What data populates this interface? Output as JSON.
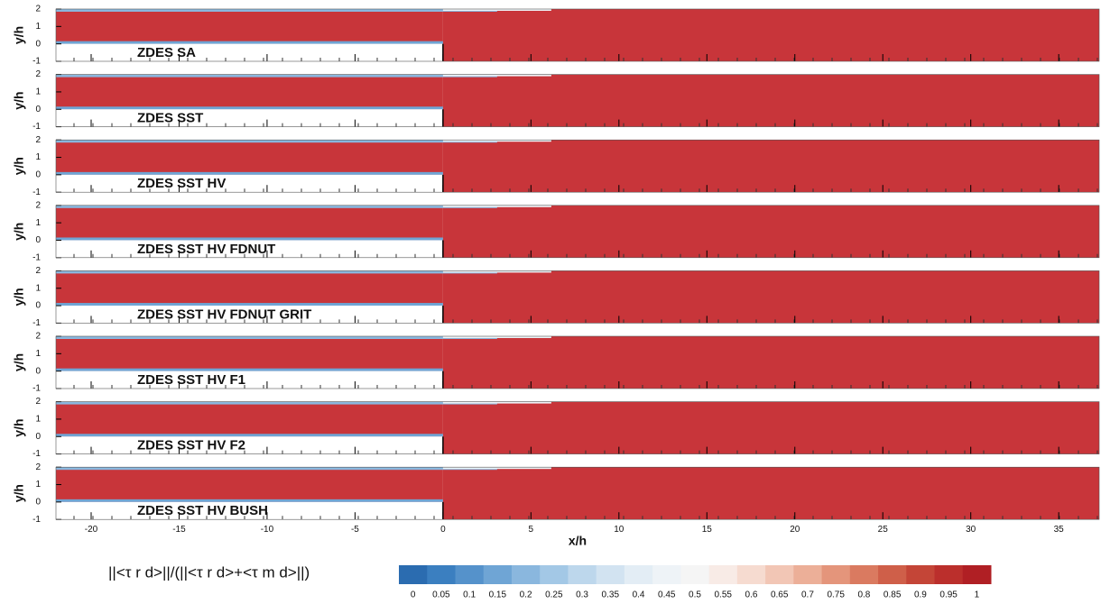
{
  "panels": [
    {
      "label": "ZDES SA"
    },
    {
      "label": "ZDES SST"
    },
    {
      "label": "ZDES SST HV"
    },
    {
      "label": "ZDES SST HV FDNUT"
    },
    {
      "label": "ZDES SST HV FDNUT GRIT"
    },
    {
      "label": "ZDES SST HV F1"
    },
    {
      "label": "ZDES SST HV F2"
    },
    {
      "label": "ZDES SST HV BUSH"
    }
  ],
  "y_axis_label": "y/h",
  "x_axis_label": "x/h",
  "xlim": [
    -22,
    37.3
  ],
  "ylim": [
    -1,
    2
  ],
  "xticks": [
    -20,
    -15,
    -10,
    -5,
    0,
    5,
    10,
    15,
    20,
    25,
    30,
    35
  ],
  "yticks": [
    -1,
    0,
    1,
    2
  ],
  "field_color": "#c8353a",
  "colorbar": {
    "label": "||<τ r d>||/(||<τ r d>+<τ m d>||)",
    "ticks": [
      0,
      0.05,
      0.1,
      0.15,
      0.2,
      0.25,
      0.3,
      0.35,
      0.4,
      0.45,
      0.5,
      0.55,
      0.6,
      0.65,
      0.7,
      0.75,
      0.8,
      0.85,
      0.9,
      0.95,
      1
    ],
    "colors": [
      "#2b6cb0",
      "#3b7fc0",
      "#5592cb",
      "#6fa5d5",
      "#8ab7de",
      "#a3c8e6",
      "#bdd7ec",
      "#d2e3f1",
      "#e3edf5",
      "#eef3f7",
      "#f5f5f5",
      "#f8ebe6",
      "#f6dbd0",
      "#f2c6b5",
      "#ecaf98",
      "#e4957b",
      "#da7a60",
      "#cf5f49",
      "#c44537",
      "#bb2f2c",
      "#b01f24"
    ]
  }
}
